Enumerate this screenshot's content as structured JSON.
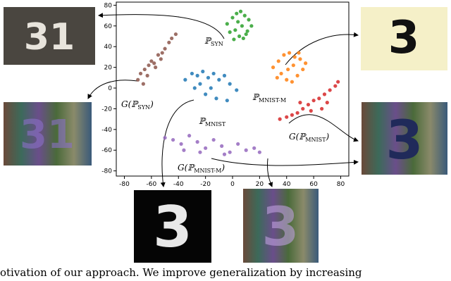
{
  "chart_data": {
    "type": "scatter",
    "xlim": [
      -86,
      86
    ],
    "ylim": [
      -85,
      83
    ],
    "xticks": [
      -80,
      -60,
      -40,
      -20,
      0,
      20,
      40,
      60,
      80
    ],
    "yticks": [
      -80,
      -60,
      -40,
      -20,
      0,
      20,
      40,
      60,
      80
    ],
    "series": [
      {
        "color": "#2ca02c",
        "x": [
          -4,
          0,
          3,
          6,
          9,
          12,
          14,
          2,
          -2,
          5,
          8,
          11,
          4,
          7,
          1,
          10
        ],
        "y": [
          62,
          68,
          72,
          74,
          70,
          66,
          60,
          56,
          54,
          50,
          48,
          55,
          64,
          60,
          47,
          52
        ]
      },
      {
        "color": "#8c564b",
        "x": [
          -70,
          -68,
          -65,
          -62,
          -60,
          -58,
          -55,
          -52,
          -50,
          -47,
          -45,
          -42,
          -66,
          -63,
          -57,
          -53
        ],
        "y": [
          8,
          14,
          18,
          22,
          26,
          24,
          32,
          34,
          38,
          44,
          48,
          52,
          4,
          12,
          20,
          28
        ]
      },
      {
        "color": "#ff7f0e",
        "x": [
          30,
          34,
          38,
          42,
          46,
          50,
          54,
          36,
          40,
          44,
          48,
          52,
          33,
          45,
          41,
          49
        ],
        "y": [
          20,
          26,
          32,
          34,
          30,
          28,
          24,
          14,
          8,
          6,
          12,
          18,
          10,
          22,
          18,
          34
        ]
      },
      {
        "color": "#1f77b4",
        "x": [
          -35,
          -30,
          -26,
          -22,
          -18,
          -14,
          -10,
          -6,
          -2,
          3,
          -28,
          -20,
          -12,
          -4,
          -16,
          -24
        ],
        "y": [
          8,
          14,
          12,
          16,
          10,
          14,
          8,
          12,
          4,
          -2,
          0,
          -6,
          -10,
          -12,
          0,
          4
        ]
      },
      {
        "color": "#d62728",
        "x": [
          35,
          40,
          44,
          48,
          52,
          56,
          60,
          64,
          68,
          72,
          76,
          78,
          58,
          66,
          50,
          70
        ],
        "y": [
          -30,
          -28,
          -26,
          -24,
          -20,
          -16,
          -12,
          -10,
          -6,
          -2,
          2,
          6,
          -22,
          -20,
          -14,
          -14
        ]
      },
      {
        "color": "#9467bd",
        "x": [
          -50,
          -44,
          -38,
          -32,
          -26,
          -20,
          -14,
          -8,
          -2,
          4,
          10,
          16,
          20,
          -36,
          -24,
          -6
        ],
        "y": [
          -48,
          -50,
          -54,
          -46,
          -52,
          -58,
          -50,
          -56,
          -62,
          -54,
          -60,
          -58,
          -62,
          -60,
          -62,
          -64
        ]
      }
    ],
    "annotations": [
      {
        "prefix": "ℙ",
        "sub": "SYN",
        "suffix": ""
      },
      {
        "prefix": "G(ℙ",
        "sub": "SYN",
        "suffix": ")"
      },
      {
        "prefix": "ℙ",
        "sub": "MNIST-M",
        "suffix": ""
      },
      {
        "prefix": "ℙ",
        "sub": "MNIST",
        "suffix": ""
      },
      {
        "prefix": "G(ℙ",
        "sub": "MNIST",
        "suffix": ")"
      },
      {
        "prefix": "G(ℙ",
        "sub": "MNIST-M",
        "suffix": ")"
      }
    ]
  },
  "images": [
    "31",
    "3",
    "31",
    "3",
    "3",
    "3"
  ],
  "caption": "otivation of our approach. We improve generalization by increasing"
}
